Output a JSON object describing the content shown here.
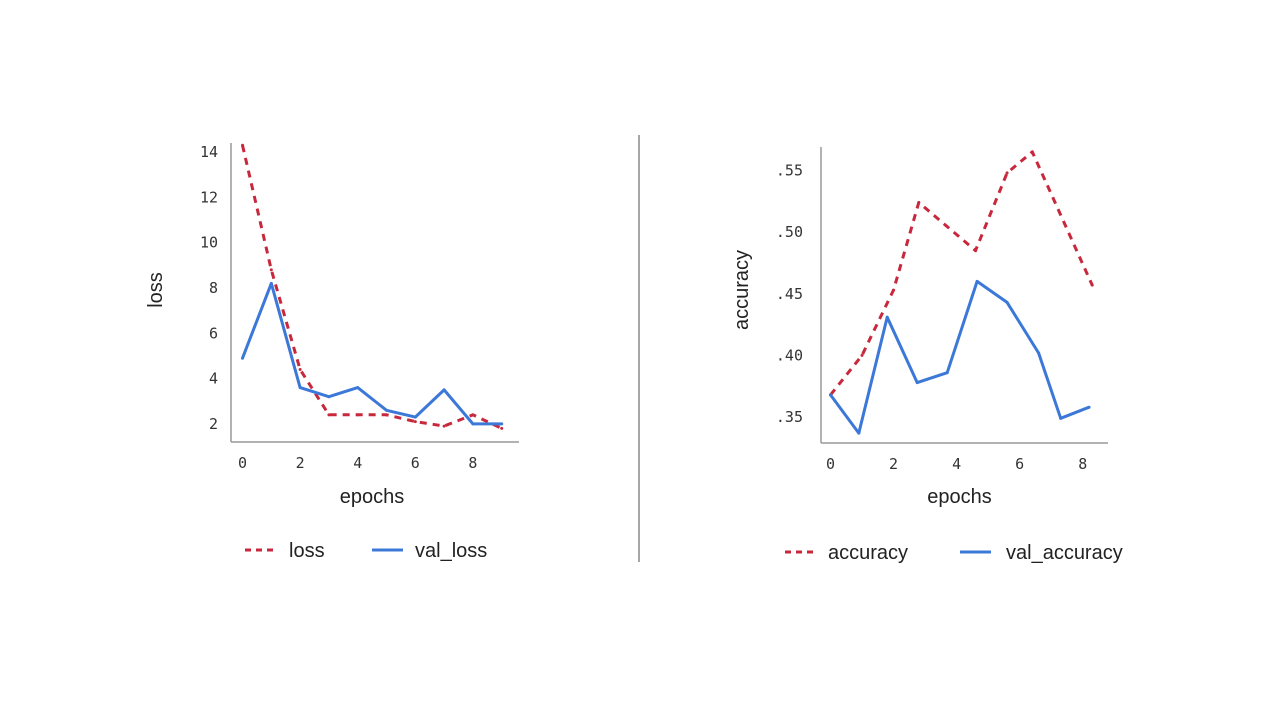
{
  "colors": {
    "train": "#c8283c",
    "validation": "#3c78d8",
    "axis": "#999999",
    "divider": "#888888"
  },
  "chart_data": [
    {
      "type": "line",
      "xlabel": "epochs",
      "ylabel": "loss",
      "xlim": [
        -0.4,
        9.6
      ],
      "ylim": [
        1.2,
        14.4
      ],
      "xticks": [
        "0",
        "2",
        "4",
        "6",
        "8"
      ],
      "xtick_values": [
        0,
        2,
        4,
        6,
        8
      ],
      "yticks": [
        "2",
        "4",
        "6",
        "8",
        "10",
        "12",
        "14"
      ],
      "ytick_values": [
        2,
        4,
        6,
        8,
        10,
        12,
        14
      ],
      "grid": false,
      "legend_placement": "bottom",
      "series": [
        {
          "name": "loss",
          "style": "dashed",
          "color": "#c8283c",
          "x": [
            0,
            1,
            2,
            3,
            4,
            5,
            6,
            7,
            8,
            9
          ],
          "y": [
            14.3,
            8.8,
            4.4,
            2.4,
            2.4,
            2.4,
            2.1,
            1.9,
            2.4,
            1.8
          ]
        },
        {
          "name": "val_loss",
          "style": "solid",
          "color": "#3c78d8",
          "x": [
            0,
            1,
            2,
            3,
            4,
            5,
            6,
            7,
            8,
            9
          ],
          "y": [
            4.9,
            8.2,
            3.6,
            3.2,
            3.6,
            2.6,
            2.3,
            3.5,
            2.0,
            2.0
          ]
        }
      ]
    },
    {
      "type": "line",
      "xlabel": "epochs",
      "ylabel": "accuracy",
      "xlim": [
        -0.3,
        8.8
      ],
      "ylim": [
        0.329,
        0.569
      ],
      "xticks": [
        "0",
        "2",
        "4",
        "6",
        "8"
      ],
      "xtick_values": [
        0,
        2,
        4,
        6,
        8
      ],
      "yticks": [
        ".35",
        ".40",
        ".45",
        ".50",
        ".55"
      ],
      "ytick_values": [
        0.35,
        0.4,
        0.45,
        0.5,
        0.55
      ],
      "grid": false,
      "legend_placement": "bottom",
      "series": [
        {
          "name": "accuracy",
          "style": "dashed",
          "color": "#c8283c",
          "x": [
            0,
            1,
            2,
            2.8,
            4.6,
            5.6,
            6.4,
            8.3
          ],
          "y": [
            0.368,
            0.4,
            0.453,
            0.524,
            0.485,
            0.548,
            0.565,
            0.457
          ]
        },
        {
          "name": "val_accuracy",
          "style": "solid",
          "color": "#3c78d8",
          "x": [
            0,
            0.9,
            1.8,
            2.75,
            3.7,
            4.65,
            5.6,
            6.6,
            7.3,
            8.2
          ],
          "y": [
            0.368,
            0.337,
            0.431,
            0.378,
            0.386,
            0.46,
            0.443,
            0.402,
            0.349,
            0.358
          ]
        }
      ]
    }
  ]
}
